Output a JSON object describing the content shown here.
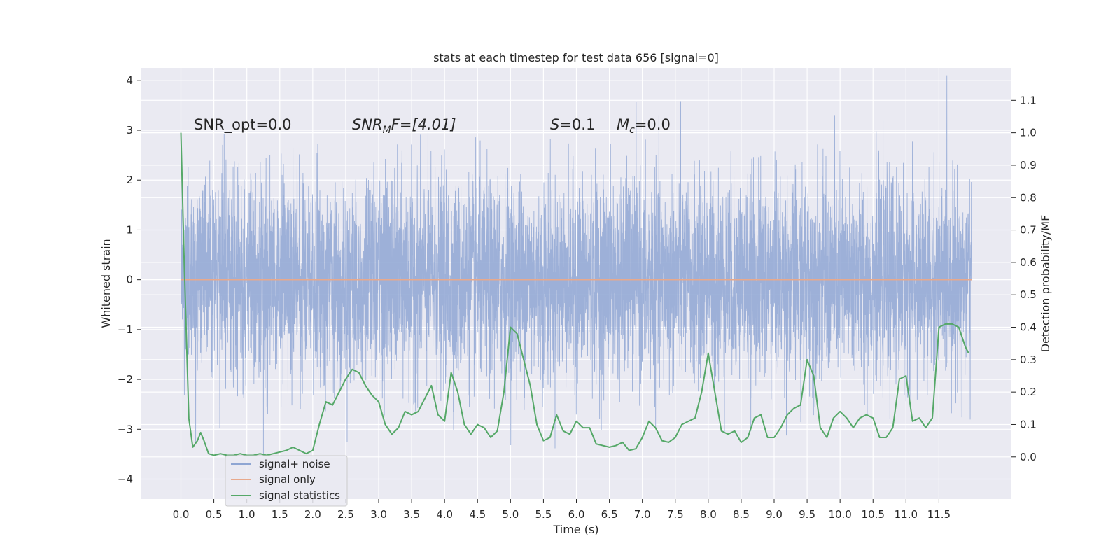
{
  "chart_data": {
    "type": "line",
    "title": "stats at each timestep for test data 656 [signal=0]",
    "xlabel": "Time (s)",
    "ylabel": "Whitened strain",
    "y2label": "Detection probability/MF",
    "xlim": [
      -0.6,
      12.6
    ],
    "ylim": [
      -4.4,
      4.25
    ],
    "y2lim": [
      -0.13,
      1.2
    ],
    "x_ticks": [
      0.0,
      0.5,
      1.0,
      1.5,
      2.0,
      2.5,
      3.0,
      3.5,
      4.0,
      4.5,
      5.0,
      5.5,
      6.0,
      6.5,
      7.0,
      7.5,
      8.0,
      8.5,
      9.0,
      9.5,
      10.0,
      10.5,
      11.0,
      11.5
    ],
    "x_tick_labels": [
      "0.0",
      "0.5",
      "1.0",
      "1.5",
      "2.0",
      "2.5",
      "3.0",
      "3.5",
      "4.0",
      "4.5",
      "5.0",
      "5.5",
      "6.0",
      "6.5",
      "7.0",
      "7.5",
      "8.0",
      "8.5",
      "9.0",
      "9.5",
      "10.0",
      "10.5",
      "11.0",
      "11.5"
    ],
    "y_ticks": [
      4,
      3,
      2,
      1,
      0,
      -1,
      -2,
      -3,
      -4
    ],
    "y_tick_labels": [
      "4",
      "3",
      "2",
      "1",
      "0",
      "−1",
      "−2",
      "−3",
      "−4"
    ],
    "y2_ticks": [
      1.1,
      1.0,
      0.9,
      0.8,
      0.7,
      0.6,
      0.5,
      0.4,
      0.3,
      0.2,
      0.1,
      0.0
    ],
    "y2_tick_labels": [
      "1.1",
      "1.0",
      "0.9",
      "0.8",
      "0.7",
      "0.6",
      "0.5",
      "0.4",
      "0.3",
      "0.2",
      "0.1",
      "0.0"
    ],
    "grid": true,
    "legend_position": "lower-left",
    "annotations": {
      "snr_opt": "SNR_opt=0.0",
      "snr_mf_a": "SNR",
      "snr_mf_sub": "M",
      "snr_mf_b": "F=[4.01]",
      "s_var": "S",
      "s_val": "=0.1",
      "mc_var": "M",
      "mc_sub": "c",
      "mc_val": "=0.0"
    },
    "series": [
      {
        "name": "signal+ noise",
        "color": "#8fa6d3",
        "axis": "left",
        "x_range": [
          0.0,
          12.0
        ],
        "amplitude_std": 1.0,
        "typical_max": 3.3,
        "typical_min": -3.4
      },
      {
        "name": "signal only",
        "color": "#e8a98c",
        "axis": "left",
        "x": [
          0.0,
          12.0
        ],
        "y": [
          0.0,
          0.0
        ]
      },
      {
        "name": "signal statistics",
        "color": "#55a868",
        "axis": "right",
        "x": [
          0.0,
          0.05,
          0.12,
          0.18,
          0.25,
          0.3,
          0.35,
          0.42,
          0.5,
          0.6,
          0.7,
          0.8,
          0.9,
          1.0,
          1.1,
          1.2,
          1.3,
          1.4,
          1.5,
          1.6,
          1.7,
          1.8,
          1.9,
          2.0,
          2.1,
          2.2,
          2.3,
          2.4,
          2.5,
          2.6,
          2.7,
          2.8,
          2.9,
          3.0,
          3.1,
          3.2,
          3.3,
          3.4,
          3.5,
          3.6,
          3.7,
          3.8,
          3.9,
          4.0,
          4.1,
          4.2,
          4.3,
          4.4,
          4.5,
          4.6,
          4.7,
          4.8,
          4.9,
          5.0,
          5.1,
          5.2,
          5.3,
          5.4,
          5.5,
          5.6,
          5.7,
          5.8,
          5.9,
          6.0,
          6.1,
          6.2,
          6.3,
          6.4,
          6.5,
          6.6,
          6.7,
          6.8,
          6.9,
          7.0,
          7.1,
          7.2,
          7.3,
          7.4,
          7.5,
          7.6,
          7.7,
          7.8,
          7.9,
          8.0,
          8.1,
          8.2,
          8.3,
          8.4,
          8.5,
          8.6,
          8.7,
          8.8,
          8.9,
          9.0,
          9.1,
          9.2,
          9.3,
          9.4,
          9.5,
          9.6,
          9.7,
          9.8,
          9.9,
          10.0,
          10.1,
          10.2,
          10.3,
          10.4,
          10.5,
          10.6,
          10.7,
          10.8,
          10.9,
          11.0,
          11.1,
          11.2,
          11.3,
          11.4,
          11.5,
          11.6,
          11.7,
          11.8,
          11.9,
          11.95
        ],
        "y": [
          1.0,
          0.6,
          0.12,
          0.03,
          0.05,
          0.075,
          0.05,
          0.01,
          0.005,
          0.01,
          0.005,
          0.005,
          0.01,
          0.005,
          0.005,
          0.01,
          0.005,
          0.01,
          0.015,
          0.02,
          0.03,
          0.02,
          0.01,
          0.02,
          0.1,
          0.17,
          0.16,
          0.2,
          0.24,
          0.27,
          0.26,
          0.22,
          0.19,
          0.17,
          0.1,
          0.07,
          0.09,
          0.14,
          0.13,
          0.14,
          0.18,
          0.22,
          0.13,
          0.11,
          0.26,
          0.2,
          0.1,
          0.07,
          0.1,
          0.09,
          0.06,
          0.08,
          0.2,
          0.4,
          0.38,
          0.3,
          0.22,
          0.1,
          0.05,
          0.06,
          0.13,
          0.08,
          0.07,
          0.11,
          0.09,
          0.09,
          0.04,
          0.035,
          0.03,
          0.035,
          0.045,
          0.02,
          0.025,
          0.06,
          0.11,
          0.09,
          0.05,
          0.045,
          0.06,
          0.1,
          0.11,
          0.12,
          0.2,
          0.32,
          0.2,
          0.08,
          0.07,
          0.08,
          0.045,
          0.06,
          0.12,
          0.13,
          0.06,
          0.06,
          0.09,
          0.13,
          0.15,
          0.16,
          0.3,
          0.25,
          0.09,
          0.06,
          0.12,
          0.14,
          0.12,
          0.09,
          0.12,
          0.13,
          0.12,
          0.06,
          0.06,
          0.09,
          0.24,
          0.25,
          0.11,
          0.12,
          0.09,
          0.12,
          0.4,
          0.41,
          0.41,
          0.4,
          0.34,
          0.32
        ]
      }
    ]
  }
}
